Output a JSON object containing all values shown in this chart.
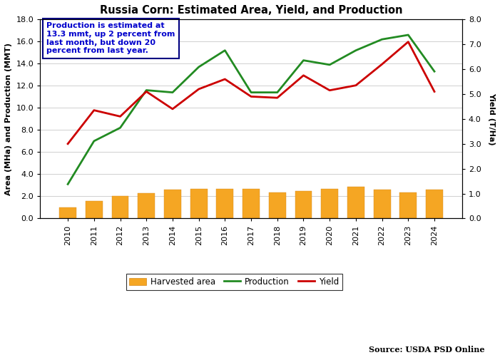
{
  "title": "Russia Corn: Estimated Area, Yield, and Production",
  "years": [
    2010,
    2011,
    2012,
    2013,
    2014,
    2015,
    2016,
    2017,
    2018,
    2019,
    2020,
    2021,
    2022,
    2023,
    2024
  ],
  "harvested_area": [
    1.0,
    1.6,
    2.0,
    2.3,
    2.6,
    2.65,
    2.7,
    2.65,
    2.35,
    2.5,
    2.7,
    2.85,
    2.6,
    2.35,
    2.6
  ],
  "production": [
    3.1,
    7.0,
    8.2,
    11.6,
    11.4,
    13.7,
    15.2,
    11.4,
    11.4,
    14.3,
    13.9,
    15.2,
    16.2,
    16.6,
    13.3
  ],
  "yield": [
    3.0,
    4.35,
    4.1,
    5.1,
    4.4,
    5.2,
    5.6,
    4.9,
    4.85,
    5.75,
    5.15,
    5.35,
    6.2,
    7.1,
    5.1
  ],
  "left_ylim": [
    0,
    18.0
  ],
  "left_yticks": [
    0.0,
    2.0,
    4.0,
    6.0,
    8.0,
    10.0,
    12.0,
    14.0,
    16.0,
    18.0
  ],
  "left_yticklabels": [
    "0.0",
    "2.0",
    "4.0",
    "6.0",
    "8.0",
    "10.0",
    "12.0",
    "14.0",
    "16.0",
    "18.0"
  ],
  "right_ylim": [
    0,
    8.0
  ],
  "right_yticks": [
    0.0,
    1.0,
    2.0,
    3.0,
    4.0,
    5.0,
    6.0,
    7.0,
    8.0
  ],
  "right_yticklabels": [
    "0.0",
    "1.0",
    "2.0",
    "3.0",
    "4.0",
    "5.0",
    "6.0",
    "7.0",
    "8.0"
  ],
  "left_ylabel": "Area (MHa) and Production (MMT)",
  "right_ylabel": "Yield (T/Ha)",
  "bar_color": "#F5A623",
  "bar_edgecolor": "#d4881a",
  "production_color": "#228B22",
  "yield_color": "#CC0000",
  "annotation_text": "Production is estimated at\n13.3 mmt, up 2 percent from\nlast month, but down 20\npercent from last year.",
  "annotation_color": "#0000CC",
  "source_text": "Source: USDA PSD Online",
  "legend_labels": [
    "Harvested area",
    "Production",
    "Yield"
  ],
  "background_color": "#ffffff",
  "grid_color": "#d0d0d0"
}
